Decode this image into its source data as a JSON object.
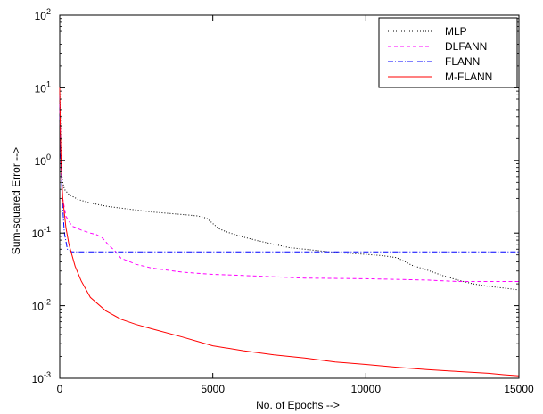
{
  "chart_data": {
    "type": "line",
    "title": "",
    "xlabel": "No. of Epochs -->",
    "ylabel": "Sum-squared Error  -->",
    "xlim": [
      0,
      15000
    ],
    "ylim": [
      0.001,
      100
    ],
    "yscale": "log",
    "grid": false,
    "legend_position": "top-right",
    "x_ticks": [
      {
        "value": 0,
        "label": "0"
      },
      {
        "value": 5000,
        "label": "5000"
      },
      {
        "value": 10000,
        "label": "10000"
      },
      {
        "value": 15000,
        "label": "15000"
      }
    ],
    "y_ticks": [
      {
        "value": 0.001,
        "base": "10",
        "exp": "-3"
      },
      {
        "value": 0.01,
        "base": "10",
        "exp": "-2"
      },
      {
        "value": 0.1,
        "base": "10",
        "exp": "-1"
      },
      {
        "value": 1,
        "base": "10",
        "exp": "0"
      },
      {
        "value": 10,
        "base": "10",
        "exp": "1"
      },
      {
        "value": 100,
        "base": "10",
        "exp": "2"
      }
    ],
    "series": [
      {
        "name": "MLP",
        "color": "#000000",
        "dash": "1,2",
        "x": [
          0,
          40,
          80,
          150,
          300,
          600,
          1000,
          1500,
          2000,
          3000,
          4000,
          4500,
          4800,
          5000,
          5200,
          5500,
          6000,
          6500,
          7000,
          7500,
          8000,
          9000,
          10000,
          10500,
          11000,
          11300,
          11500,
          12000,
          12500,
          13000,
          13500,
          14000,
          14500,
          15000
        ],
        "y": [
          9,
          1.5,
          0.55,
          0.4,
          0.34,
          0.29,
          0.26,
          0.235,
          0.22,
          0.195,
          0.18,
          0.172,
          0.16,
          0.135,
          0.115,
          0.102,
          0.088,
          0.078,
          0.07,
          0.063,
          0.06,
          0.054,
          0.051,
          0.049,
          0.046,
          0.04,
          0.036,
          0.031,
          0.026,
          0.0225,
          0.02,
          0.0185,
          0.0175,
          0.0165
        ]
      },
      {
        "name": "DLFANN",
        "color": "#ff00ff",
        "dash": "4,3",
        "x": [
          0,
          40,
          100,
          200,
          400,
          700,
          1000,
          1200,
          1400,
          1600,
          1800,
          2000,
          2500,
          3000,
          4000,
          5000,
          6000,
          8000,
          10000,
          12000,
          13000,
          15000
        ],
        "y": [
          6,
          0.8,
          0.3,
          0.17,
          0.125,
          0.11,
          0.1,
          0.095,
          0.085,
          0.068,
          0.057,
          0.045,
          0.037,
          0.033,
          0.029,
          0.027,
          0.026,
          0.024,
          0.0235,
          0.0225,
          0.0215,
          0.0215
        ]
      },
      {
        "name": "FLANN",
        "color": "#0000ff",
        "dash": "6,2,1,2",
        "x": [
          0,
          30,
          80,
          150,
          250,
          400,
          15000
        ],
        "y": [
          8,
          1.2,
          0.3,
          0.1,
          0.06,
          0.055,
          0.055
        ]
      },
      {
        "name": "M-FLANN",
        "color": "#ff0000",
        "dash": "",
        "x": [
          0,
          20,
          50,
          100,
          200,
          300,
          500,
          700,
          1000,
          1500,
          2000,
          2500,
          3000,
          4000,
          5000,
          6000,
          7000,
          8000,
          9000,
          10000,
          11000,
          12000,
          13000,
          14000,
          14500,
          15000
        ],
        "y": [
          10,
          2.5,
          0.8,
          0.3,
          0.12,
          0.07,
          0.035,
          0.022,
          0.013,
          0.0085,
          0.0065,
          0.0055,
          0.0048,
          0.0037,
          0.0028,
          0.0024,
          0.0021,
          0.0019,
          0.00168,
          0.00155,
          0.00142,
          0.00132,
          0.00124,
          0.00117,
          0.00112,
          0.00108
        ]
      }
    ]
  }
}
